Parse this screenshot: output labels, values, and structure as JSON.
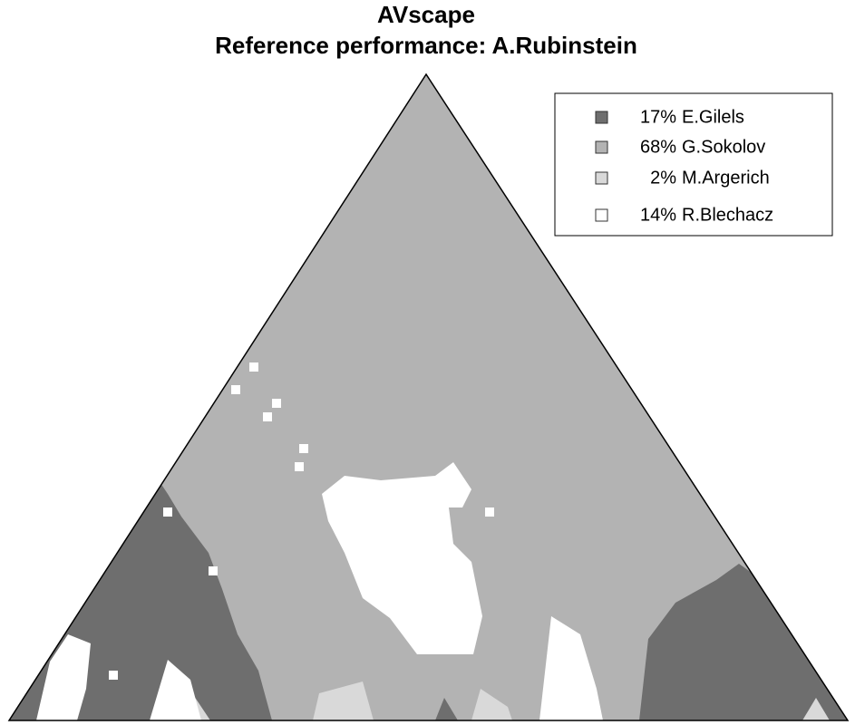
{
  "chart_data": {
    "type": "ternary-map",
    "title": "AVscape",
    "subtitle": "Reference performance: A.Rubinstein",
    "series": [
      {
        "name": "E.Gilels",
        "color": "#6e6e6e",
        "values": [
          17
        ],
        "value_labels": [
          "17%"
        ]
      },
      {
        "name": "G.Sokolov",
        "color": "#b3b3b3",
        "values": [
          68
        ],
        "value_labels": [
          "68%"
        ]
      },
      {
        "name": "M.Argerich",
        "color": "#d9d9d9",
        "values": [
          2
        ],
        "value_labels": [
          "2%"
        ]
      },
      {
        "name": "R.Blechacz",
        "color": "#ffffff",
        "values": [
          14
        ],
        "value_labels": [
          "14%"
        ]
      }
    ],
    "legend": "upper right"
  }
}
